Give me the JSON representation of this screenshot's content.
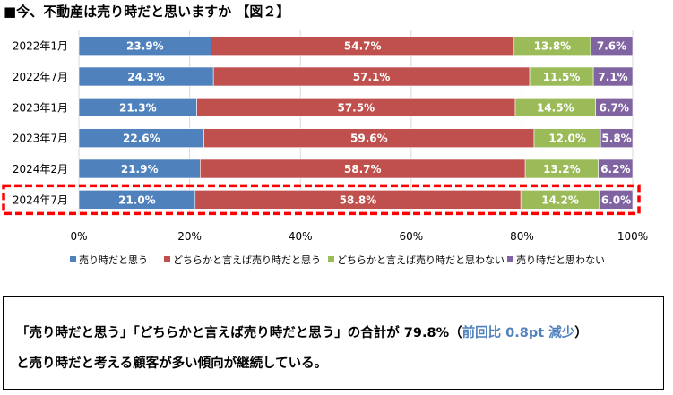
{
  "title": "■今、不動産は売り時だと思いますか 【図２】",
  "chart_data": {
    "type": "bar",
    "orientation": "horizontal",
    "stacked": "percent",
    "categories": [
      "2022年1月",
      "2022年7月",
      "2023年1月",
      "2023年7月",
      "2024年2月",
      "2024年7月"
    ],
    "series": [
      {
        "name": "売り時だと思う",
        "color": "#4f81bd",
        "values": [
          23.9,
          24.3,
          21.3,
          22.6,
          21.9,
          21.0
        ],
        "labels": [
          "23.9%",
          "24.3%",
          "21.3%",
          "22.6%",
          "21.9%",
          "21.0%"
        ]
      },
      {
        "name": "どちらかと言えば売り時だと思う",
        "color": "#c0504d",
        "values": [
          54.7,
          57.1,
          57.5,
          59.6,
          58.7,
          58.8
        ],
        "labels": [
          "54.7%",
          "57.1%",
          "57.5%",
          "59.6%",
          "58.7%",
          "58.8%"
        ]
      },
      {
        "name": "どちらかと言えば売り時だと思わない",
        "color": "#9bbb59",
        "values": [
          13.8,
          11.5,
          14.5,
          12.0,
          13.2,
          14.2
        ],
        "labels": [
          "13.8%",
          "11.5%",
          "14.5%",
          "12.0%",
          "13.2%",
          "14.2%"
        ]
      },
      {
        "name": "売り時だと思わない",
        "color": "#8064a2",
        "values": [
          7.6,
          7.1,
          6.7,
          5.8,
          6.2,
          6.0
        ],
        "labels": [
          "7.6%",
          "7.1%",
          "6.7%",
          "5.8%",
          "6.2%",
          "6.0%"
        ]
      }
    ],
    "xlim": [
      0,
      100
    ],
    "xticks": [
      "0%",
      "20%",
      "40%",
      "60%",
      "80%",
      "100%"
    ],
    "highlight_category": "2024年7月",
    "highlight_color": "#ff0000",
    "legend_position": "bottom"
  },
  "summary": {
    "line1_main": "「売り時だと思う」「どちらかと言えば売り時だと思う」の合計が 79.8%（",
    "line1_highlight": "前回比 0.8pt 減少",
    "line1_end": "）",
    "line2": "と売り時だと考える顧客が多い傾向が継続している。"
  }
}
